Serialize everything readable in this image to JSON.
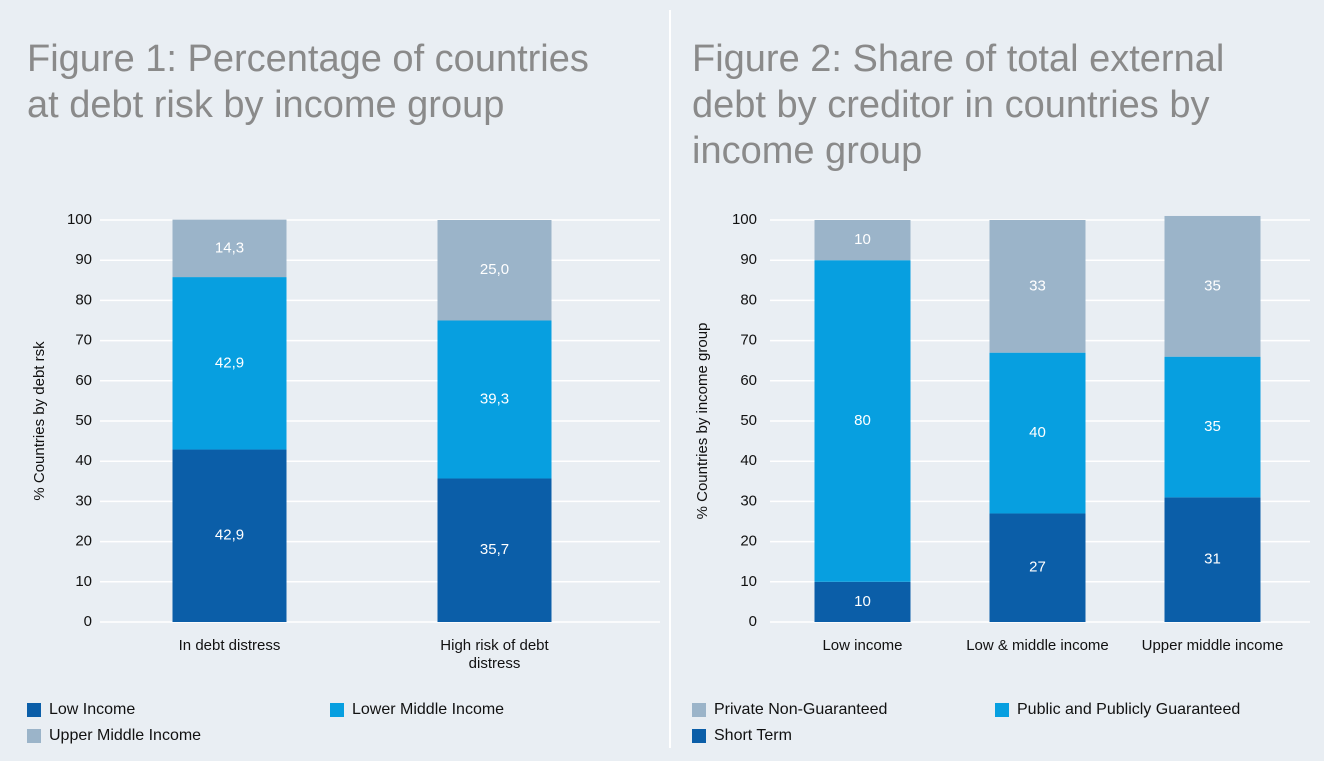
{
  "chart_data": [
    {
      "type": "bar",
      "stacked": true,
      "title": "Figure 1: Percentage of countries at debt risk by income group",
      "y_label": "% Countries by debt rsk",
      "categories": [
        "In debt distress",
        "High risk of debt distress"
      ],
      "series": [
        {
          "name": "Low Income",
          "color": "#0b5ea8",
          "values": [
            42.9,
            35.7
          ],
          "value_labels": [
            "42,9",
            "35,7"
          ]
        },
        {
          "name": "Lower Middle Income",
          "color": "#079fe0",
          "values": [
            42.9,
            39.3
          ],
          "value_labels": [
            "42,9",
            "39,3"
          ]
        },
        {
          "name": "Upper Middle Income",
          "color": "#9bb4c9",
          "values": [
            14.3,
            25.0
          ],
          "value_labels": [
            "14,3",
            "25,0"
          ]
        }
      ],
      "ylim": [
        0,
        100
      ],
      "yticks": [
        0,
        10,
        20,
        30,
        40,
        50,
        60,
        70,
        80,
        90,
        100
      ],
      "grid": true
    },
    {
      "type": "bar",
      "stacked": true,
      "title": "Figure 2: Share of total external debt by creditor in countries by income group",
      "y_label": "% Countries by income group",
      "categories": [
        "Low income",
        "Low & middle income",
        "Upper middle income"
      ],
      "series": [
        {
          "name": "Short Term",
          "color": "#0b5ea8",
          "values": [
            10,
            27,
            31
          ]
        },
        {
          "name": "Public and Publicly Guaranteed",
          "color": "#079fe0",
          "values": [
            80,
            40,
            35
          ]
        },
        {
          "name": "Private Non-Guaranteed",
          "color": "#9bb4c9",
          "values": [
            10,
            33,
            35
          ]
        }
      ],
      "ylim": [
        0,
        100
      ],
      "yticks": [
        0,
        10,
        20,
        30,
        40,
        50,
        60,
        70,
        80,
        90,
        100
      ],
      "grid": true
    }
  ]
}
